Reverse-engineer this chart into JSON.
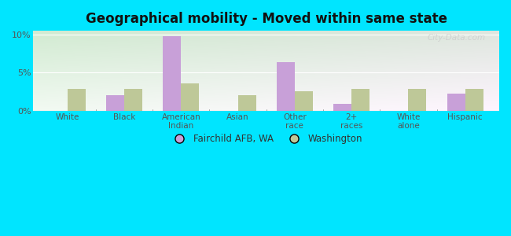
{
  "title": "Geographical mobility - Moved within same state",
  "categories": [
    "White",
    "Black",
    "American\nIndian",
    "Asian",
    "Other\nrace",
    "2+\nraces",
    "White\nalone",
    "Hispanic"
  ],
  "fairchild_values": [
    0.0,
    2.0,
    9.8,
    0.0,
    6.4,
    0.9,
    0.0,
    2.2
  ],
  "washington_values": [
    2.9,
    2.9,
    3.6,
    2.0,
    2.5,
    2.9,
    2.9,
    2.9
  ],
  "fairchild_color": "#c8a0d8",
  "washington_color": "#bec898",
  "ylim": [
    0,
    10.5
  ],
  "yticks": [
    0,
    5,
    10
  ],
  "ytick_labels": [
    "0%",
    "5%",
    "10%"
  ],
  "outer_bg": "#00e5ff",
  "legend_fairchild": "Fairchild AFB, WA",
  "legend_washington": "Washington",
  "watermark": "City-Data.com"
}
